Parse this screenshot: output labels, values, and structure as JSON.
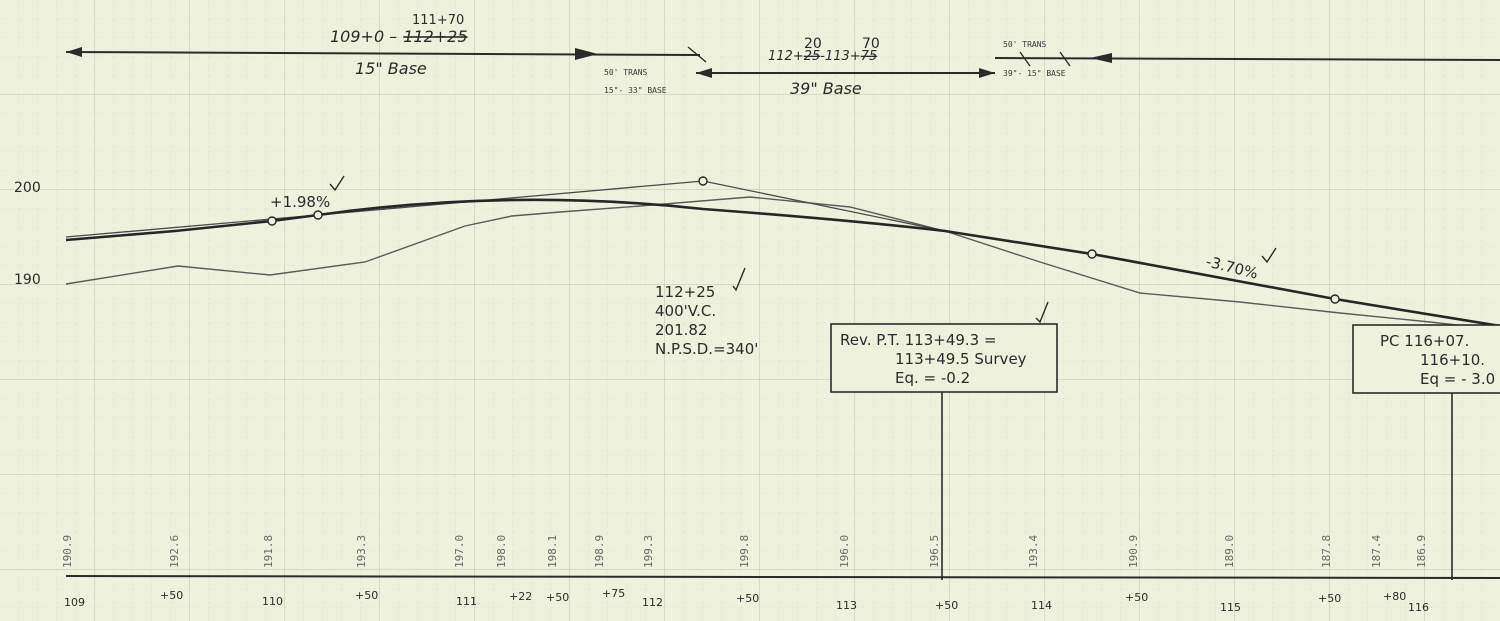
{
  "axis": {
    "y_labels": [
      "200",
      "190"
    ],
    "stations": [
      "109",
      "+50",
      "110",
      "+50",
      "111",
      "+22",
      "+50",
      "+75",
      "112",
      "+50",
      "113",
      "+50",
      "114",
      "+50",
      "115",
      "+50",
      "+80",
      "116"
    ],
    "elevations": [
      "190.9",
      "192.6",
      "191.8",
      "193.3",
      "197.0",
      "198.0",
      "198.1",
      "198.9",
      "199.3",
      "199.8",
      "196.0",
      "196.5",
      "193.4",
      "190.9",
      "189.0",
      "187.8",
      "187.4",
      "186.9"
    ]
  },
  "base_notes": {
    "left_range": "109+0 –",
    "left_struck": "112+25",
    "left_sup": "111+70",
    "left_base": "15\" Base",
    "trans_a1": "50' TRANS",
    "trans_a2": "15\"- 33\" BASE",
    "mid_range_a": "112+",
    "mid_struck_a": "25",
    "mid_range_b": "-113+",
    "mid_struck_b": "75",
    "mid_sup_a": "20",
    "mid_sup_b": "70",
    "mid_base": "39\" Base",
    "trans_b1": "50' TRANS",
    "trans_b2": "39\"- 15\" BASE"
  },
  "grades": {
    "left": "+1.98%",
    "right": "-3.70%"
  },
  "vc_note": {
    "line1": "112+25",
    "line2": "400'V.C.",
    "line3": "201.82",
    "line4": "N.P.S.D.=340'"
  },
  "box1": {
    "line1": "Rev. P.T. 113+49.3 =",
    "line2": "113+49.5 Survey",
    "line3": "Eq. = -0.2"
  },
  "box2": {
    "line1": "PC 116+07.",
    "line2": "116+10.",
    "line3": "Eq = - 3.0"
  },
  "colors": {
    "paper": "#eef2dc",
    "grid": "#c3c7b4",
    "ink": "#2b2b2b"
  }
}
